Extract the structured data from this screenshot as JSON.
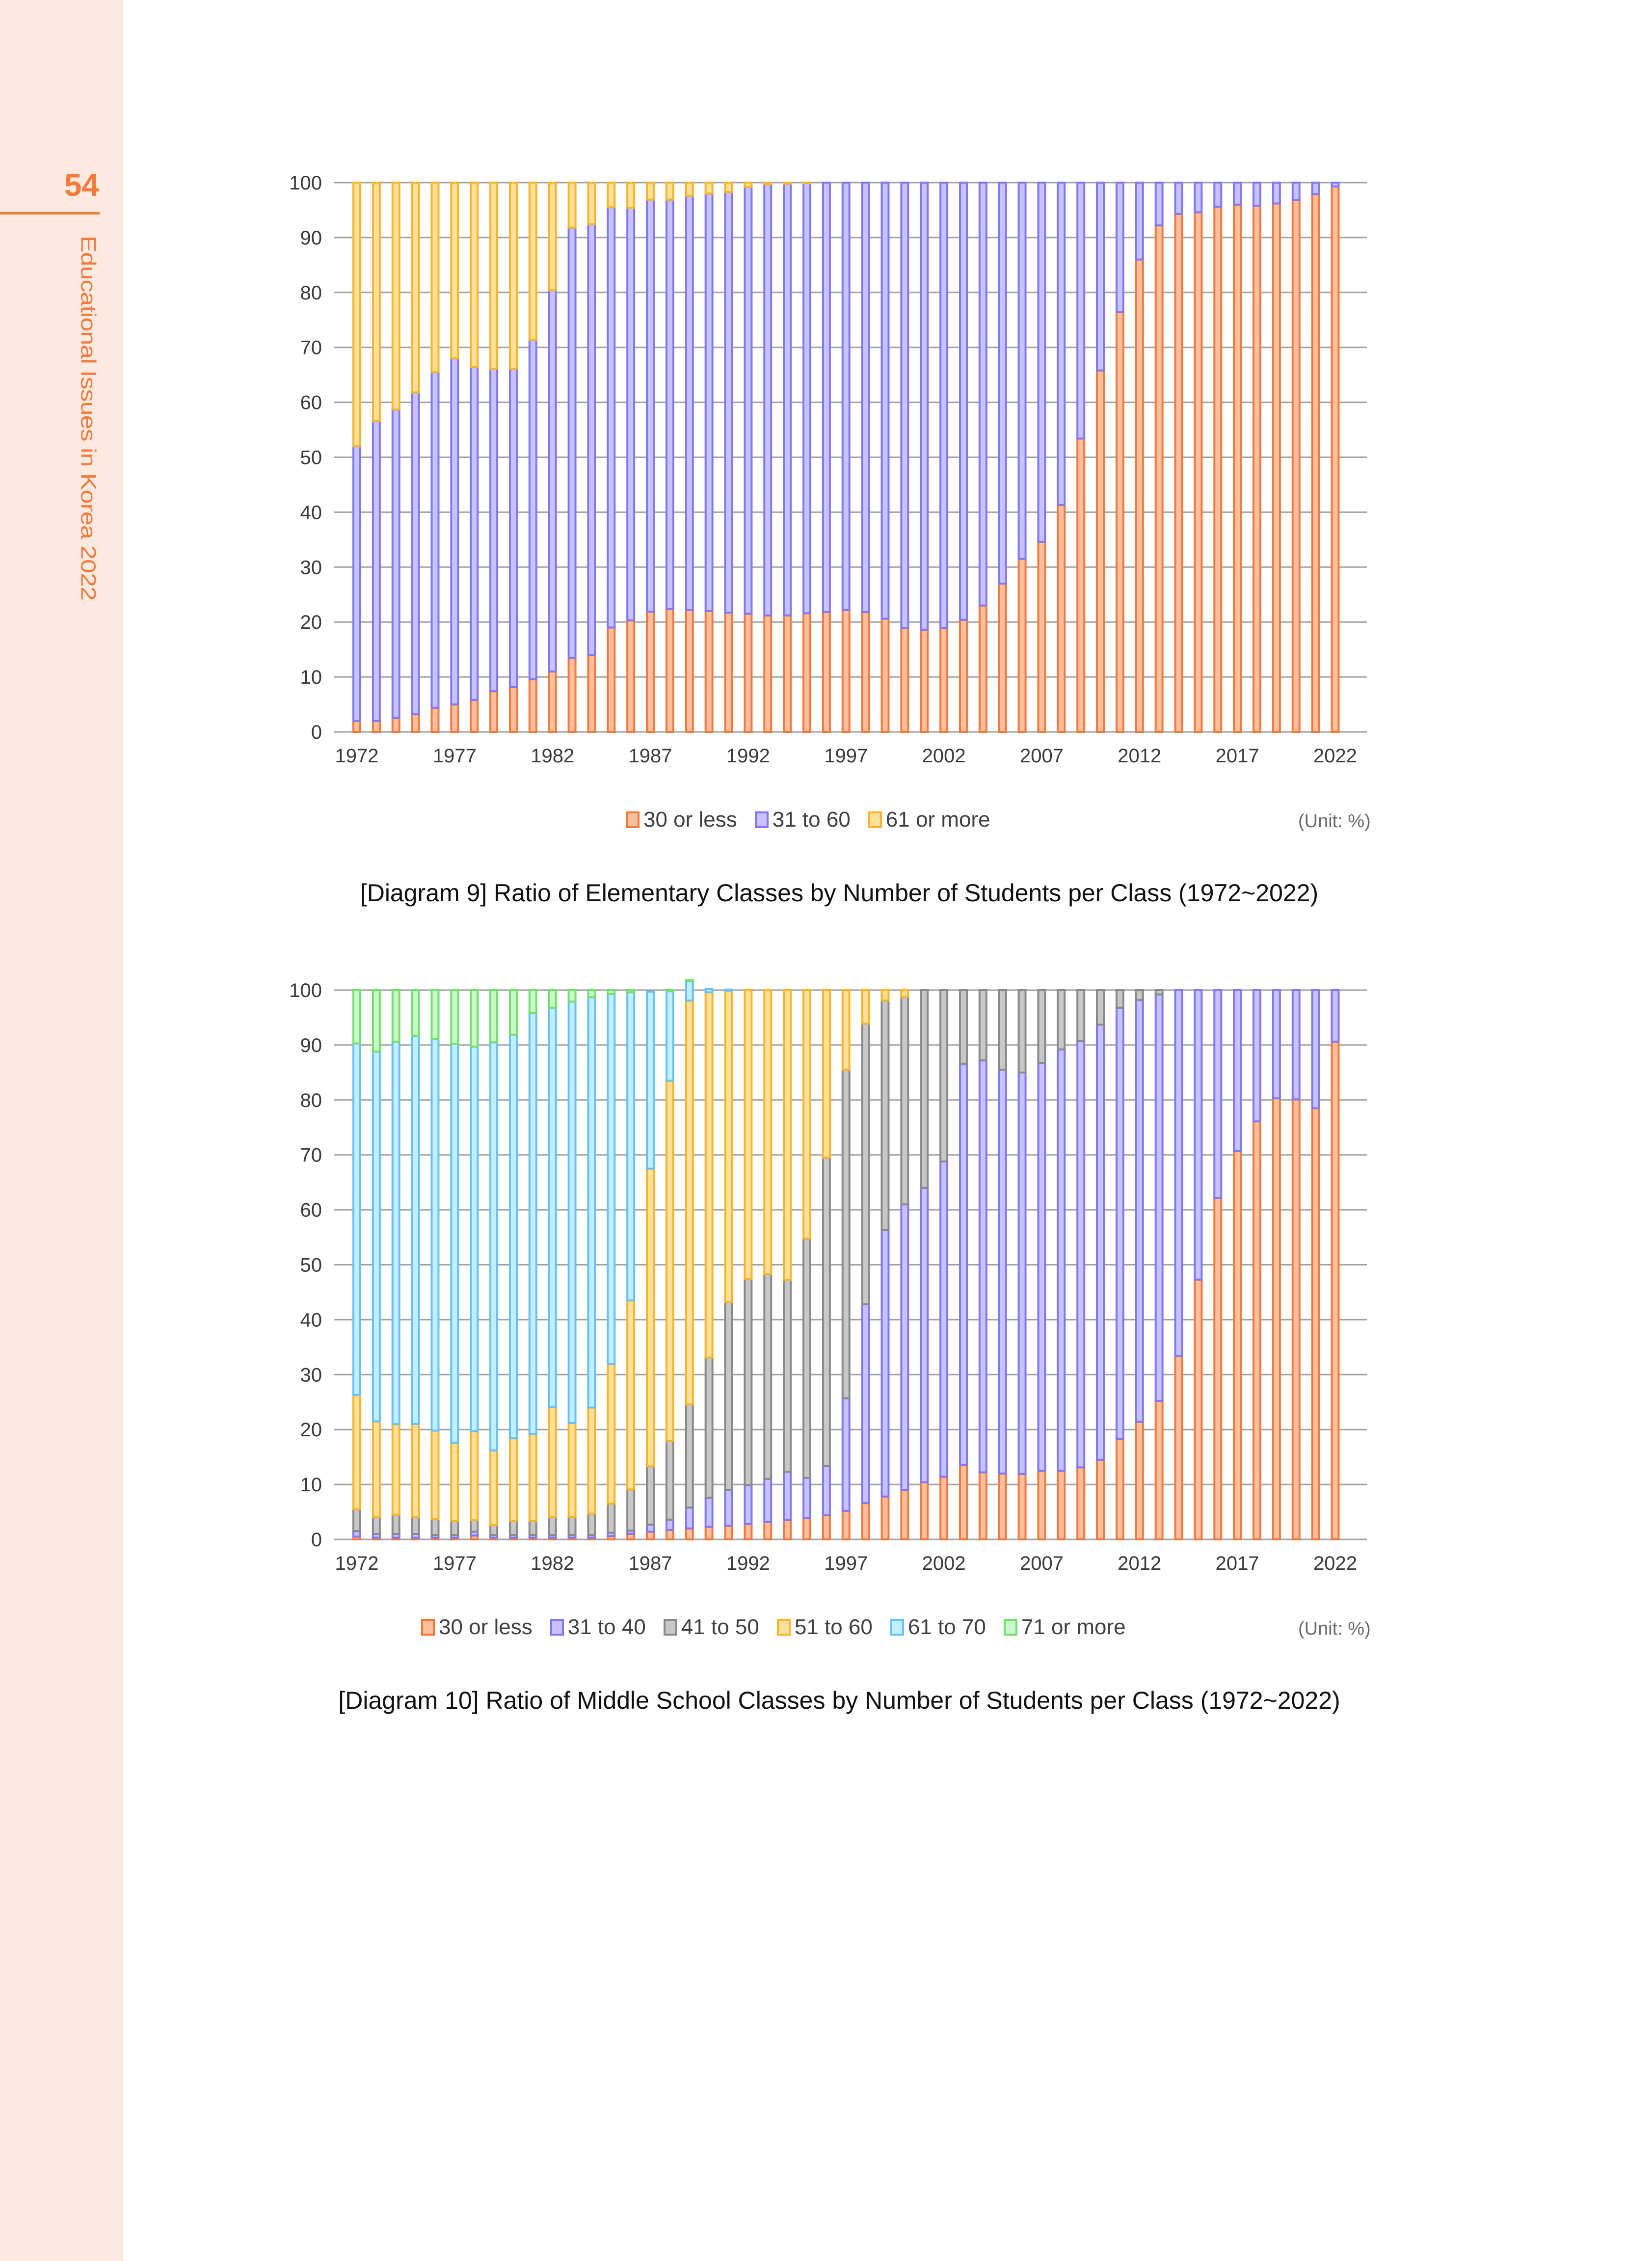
{
  "page": {
    "number": "54",
    "running_title": "Educational Issues in Korea 2022",
    "accent_color": "#f47a3c",
    "sidebar_color": "#fde9e0"
  },
  "chart_data": [
    {
      "type": "bar",
      "stacked": true,
      "title": "[Diagram 9] Ratio of Elementary Classes by Number of Students per Class (1972~2022)",
      "unit_label": "(Unit: %)",
      "xlabel": "",
      "ylabel": "",
      "ylim": [
        0,
        100
      ],
      "yticks": [
        0,
        10,
        20,
        30,
        40,
        50,
        60,
        70,
        80,
        90,
        100
      ],
      "xtick_labels": [
        "1972",
        "1977",
        "1982",
        "1987",
        "1992",
        "1997",
        "2002",
        "2007",
        "2012",
        "2017",
        "2022"
      ],
      "grid": true,
      "legend_position": "bottom",
      "categories": [
        "1972",
        "1973",
        "1974",
        "1975",
        "1976",
        "1977",
        "1978",
        "1979",
        "1980",
        "1981",
        "1982",
        "1983",
        "1984",
        "1985",
        "1986",
        "1987",
        "1988",
        "1989",
        "1990",
        "1991",
        "1992",
        "1993",
        "1994",
        "1995",
        "1996",
        "1997",
        "1998",
        "1999",
        "2000",
        "2001",
        "2002",
        "2003",
        "2004",
        "2005",
        "2006",
        "2007",
        "2008",
        "2009",
        "2010",
        "2011",
        "2012",
        "2013",
        "2014",
        "2015",
        "2016",
        "2017",
        "2018",
        "2019",
        "2020",
        "2021",
        "2022"
      ],
      "series": [
        {
          "name": "30 or less",
          "fill": "#fdbf9f",
          "stroke": "#f47a3c",
          "values": [
            2,
            2,
            2.5,
            3.2,
            4.4,
            5,
            5.8,
            7.4,
            8.2,
            9.6,
            11,
            13.5,
            14,
            19,
            20.3,
            21.9,
            22.4,
            22.2,
            22,
            21.7,
            21.5,
            21.2,
            21.2,
            21.6,
            21.8,
            22.2,
            21.8,
            20.6,
            18.9,
            18.6,
            18.9,
            20.4,
            23,
            27,
            31.5,
            34.6,
            41.3,
            53.4,
            65.8,
            76.4,
            86,
            92.2,
            94.3,
            94.6,
            95.6,
            96,
            95.8,
            96.2,
            96.8,
            97.9,
            99.3
          ]
        },
        {
          "name": "31 to 60",
          "fill": "#c8c2ff",
          "stroke": "#8178f5",
          "values": [
            50,
            54.6,
            56.2,
            58.6,
            61.1,
            63,
            60.6,
            58.7,
            57.9,
            61.8,
            69.4,
            78.3,
            78.4,
            76.5,
            75.1,
            75,
            74.5,
            75.4,
            76,
            76.6,
            77.7,
            78.5,
            78.6,
            78.3,
            78.2,
            77.8,
            78.2,
            79.4,
            81.1,
            81.4,
            81.1,
            79.6,
            77,
            73,
            68.5,
            65.4,
            58.7,
            46.6,
            34.2,
            23.6,
            14,
            7.8,
            5.7,
            5.4,
            4.4,
            4,
            4.2,
            3.8,
            3.2,
            2.1,
            0.7
          ]
        },
        {
          "name": "61 or more",
          "fill": "#ffe09a",
          "stroke": "#f7b52a",
          "values": [
            48,
            43.4,
            41.3,
            38.2,
            34.5,
            32,
            33.6,
            33.9,
            33.9,
            28.6,
            19.6,
            8.2,
            7.6,
            4.5,
            4.6,
            3.1,
            3.1,
            2.4,
            2,
            1.7,
            0.8,
            0.3,
            0.2,
            0.1,
            0,
            0,
            0,
            0,
            0,
            0,
            0,
            0,
            0,
            0,
            0,
            0,
            0,
            0,
            0,
            0,
            0,
            0,
            0,
            0,
            0,
            0,
            0,
            0,
            0,
            0,
            0
          ]
        }
      ]
    },
    {
      "type": "bar",
      "stacked": true,
      "title": "[Diagram 10] Ratio of Middle School Classes by Number of Students per Class (1972~2022)",
      "unit_label": "(Unit: %)",
      "xlabel": "",
      "ylabel": "",
      "ylim": [
        0,
        100
      ],
      "yticks": [
        0,
        10,
        20,
        30,
        40,
        50,
        60,
        70,
        80,
        90,
        100
      ],
      "xtick_labels": [
        "1972",
        "1977",
        "1982",
        "1987",
        "1992",
        "1997",
        "2002",
        "2007",
        "2012",
        "2017",
        "2022"
      ],
      "grid": true,
      "legend_position": "bottom",
      "categories": [
        "1972",
        "1973",
        "1974",
        "1975",
        "1976",
        "1977",
        "1978",
        "1979",
        "1980",
        "1981",
        "1982",
        "1983",
        "1984",
        "1985",
        "1986",
        "1987",
        "1988",
        "1989",
        "1990",
        "1991",
        "1992",
        "1993",
        "1994",
        "1995",
        "1996",
        "1997",
        "1998",
        "1999",
        "2000",
        "2001",
        "2002",
        "2003",
        "2004",
        "2005",
        "2006",
        "2007",
        "2008",
        "2009",
        "2010",
        "2011",
        "2012",
        "2013",
        "2014",
        "2015",
        "2016",
        "2017",
        "2018",
        "2019",
        "2020",
        "2021",
        "2022"
      ],
      "series": [
        {
          "name": "30 or less",
          "fill": "#fdbf9f",
          "stroke": "#f47a3c",
          "values": [
            0.5,
            0.3,
            0.3,
            0.3,
            0.3,
            0.3,
            0.7,
            0.3,
            0.3,
            0.3,
            0.3,
            0.3,
            0.3,
            0.6,
            1,
            1.4,
            1.7,
            2,
            2.3,
            2.5,
            2.8,
            3.2,
            3.5,
            3.9,
            4.4,
            5.2,
            6.6,
            7.8,
            9,
            10.4,
            11.4,
            13.5,
            12.2,
            12,
            11.9,
            12.5,
            12.5,
            13.1,
            14.5,
            18.3,
            21.4,
            25.2,
            33.4,
            47.3,
            62.2,
            70.7,
            76.1,
            80.3,
            80.1,
            78.5,
            90.6
          ]
        },
        {
          "name": "31 to 40",
          "fill": "#c8c2ff",
          "stroke": "#8178f5",
          "values": [
            1,
            0.7,
            0.7,
            0.7,
            0.5,
            0.5,
            0.7,
            0.5,
            0.5,
            0.5,
            0.5,
            0.5,
            0.5,
            0.6,
            0.6,
            1.3,
            1.9,
            3.8,
            5.3,
            6.5,
            7.1,
            7.8,
            8.8,
            7.3,
            9,
            20.5,
            36.2,
            48.5,
            52,
            53.6,
            57.4,
            73.1,
            75,
            73.5,
            73.1,
            74.2,
            76.7,
            77.6,
            79.2,
            78.5,
            76.8,
            74,
            66.6,
            52.7,
            37.8,
            29.3,
            23.9,
            19.7,
            19.9,
            21.5,
            9.4
          ]
        },
        {
          "name": "41 to 50",
          "fill": "#c8c8c8",
          "stroke": "#8a8a8a",
          "values": [
            4,
            3.1,
            3.5,
            3.1,
            2.9,
            2.6,
            2.1,
            1.8,
            2.6,
            2.6,
            3.3,
            3.3,
            3.9,
            5.3,
            7.5,
            10.6,
            14.3,
            18.8,
            25.5,
            34.2,
            37.5,
            37.3,
            34.9,
            43.6,
            56.1,
            59.8,
            51.1,
            41.8,
            37.8,
            36,
            31.2,
            13.4,
            12.8,
            14.5,
            15,
            13.3,
            10.8,
            9.3,
            6.3,
            3.2,
            1.8,
            0.8,
            0,
            0,
            0,
            0,
            0,
            0,
            0,
            0,
            0
          ]
        },
        {
          "name": "51 to 60",
          "fill": "#ffe09a",
          "stroke": "#f7b52a",
          "values": [
            20.8,
            17.4,
            16.5,
            16.9,
            16.1,
            14.2,
            16.2,
            13.6,
            15,
            15.8,
            20,
            17.1,
            19.3,
            25.4,
            34.4,
            54.2,
            65.6,
            73.5,
            66.5,
            56.7,
            52.6,
            51.7,
            52.8,
            45.2,
            30.5,
            14.5,
            6.1,
            1.9,
            1.2,
            0,
            0,
            0,
            0,
            0,
            0,
            0,
            0,
            0,
            0,
            0,
            0,
            0,
            0,
            0,
            0,
            0,
            0,
            0,
            0,
            0,
            0
          ]
        },
        {
          "name": "61 to 70",
          "fill": "#c2efff",
          "stroke": "#66c1f5",
          "values": [
            64,
            67.3,
            69.6,
            70.7,
            71.3,
            72.6,
            70,
            74.3,
            73.5,
            76.6,
            72.7,
            76.7,
            74.7,
            67.4,
            56.1,
            32.2,
            16.3,
            3.5,
            0.6,
            0.2,
            0,
            0,
            0,
            0,
            0,
            0,
            0,
            0,
            0,
            0,
            0,
            0,
            0,
            0,
            0,
            0,
            0,
            0,
            0,
            0,
            0,
            0,
            0,
            0,
            0,
            0,
            0,
            0,
            0,
            0,
            0
          ]
        },
        {
          "name": "71 or more",
          "fill": "#ccf7cc",
          "stroke": "#73e06e",
          "values": [
            9.7,
            11.2,
            9.4,
            8.3,
            8.9,
            9.8,
            10.3,
            9.5,
            8.1,
            4.2,
            3.2,
            2.1,
            1.3,
            0.7,
            0.4,
            0,
            0.2,
            0.2,
            0,
            0,
            0,
            0,
            0,
            0,
            0,
            0,
            0,
            0,
            0,
            0,
            0,
            0,
            0,
            0,
            0,
            0,
            0,
            0,
            0,
            0,
            0,
            0,
            0,
            0,
            0,
            0,
            0,
            0,
            0,
            0,
            0
          ]
        }
      ]
    }
  ]
}
